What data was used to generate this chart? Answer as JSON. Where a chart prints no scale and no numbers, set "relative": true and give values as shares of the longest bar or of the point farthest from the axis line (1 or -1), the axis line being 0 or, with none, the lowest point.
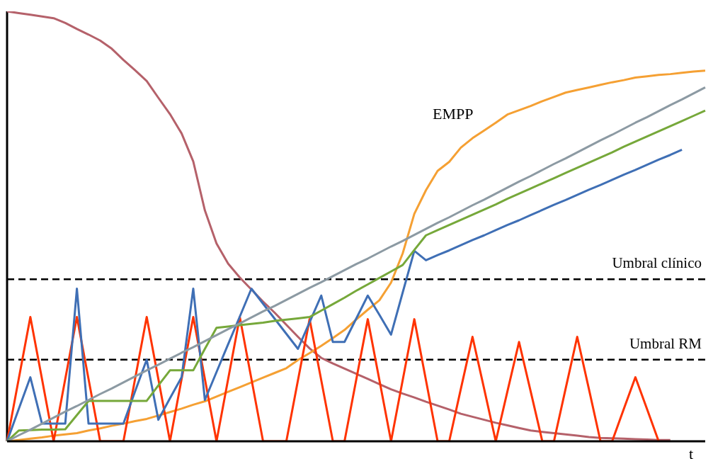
{
  "chart_data": {
    "type": "line",
    "relative": true,
    "xlabel": "t",
    "annotations": [
      "EMPP"
    ],
    "categories": [
      null,
      null,
      null,
      null,
      null,
      null,
      null,
      null,
      null,
      null,
      null,
      null,
      null,
      null,
      null,
      null,
      null,
      null,
      null,
      null,
      null,
      null,
      null,
      null,
      null,
      null,
      null,
      null,
      null,
      null,
      null,
      null,
      null,
      null,
      null,
      null,
      null,
      null,
      null,
      null,
      null,
      null,
      null,
      null,
      null,
      null,
      null,
      null,
      null,
      null,
      null,
      null,
      null,
      null,
      null,
      null,
      null,
      null,
      null,
      null,
      null
    ],
    "ref_lines": [
      {
        "axis": "y",
        "value": 0.377,
        "label": "Umbral clínico",
        "color": "#000000",
        "line_style": "dashed"
      },
      {
        "axis": "y",
        "value": 0.19,
        "label": "Umbral RM",
        "color": "#000000",
        "line_style": "dashed"
      }
    ],
    "series": [
      {
        "color": "#b5616a",
        "values": [
          1,
          0.996,
          0.992,
          0.988,
          0.984,
          0.973,
          0.959,
          0.946,
          0.932,
          0.913,
          0.887,
          0.863,
          0.838,
          0.799,
          0.761,
          0.716,
          0.651,
          0.537,
          0.46,
          0.413,
          0.381,
          0.353,
          0.325,
          0.299,
          0.271,
          0.243,
          0.216,
          0.194,
          0.181,
          0.169,
          0.157,
          0.145,
          0.133,
          0.121,
          0.111,
          0.102,
          0.092,
          0.083,
          0.074,
          0.064,
          0.057,
          0.05,
          0.043,
          0.037,
          0.031,
          0.025,
          0.022,
          0.019,
          0.016,
          0.013,
          0.01,
          0.008,
          0.007,
          0.006,
          0.005,
          0.004,
          0.003,
          0.003,
          null,
          null,
          null
        ]
      },
      {
        "color": "#f5a033",
        "values": [
          0,
          0.003,
          0.006,
          0.009,
          0.013,
          0.016,
          0.019,
          0.025,
          0.03,
          0.036,
          0.041,
          0.047,
          0.052,
          0.06,
          0.068,
          0.076,
          0.085,
          0.093,
          0.104,
          0.115,
          0.126,
          0.137,
          0.148,
          0.159,
          0.17,
          0.189,
          0.205,
          0.222,
          0.24,
          0.259,
          0.283,
          0.306,
          0.328,
          0.369,
          0.437,
          0.529,
          0.584,
          0.629,
          0.65,
          0.683,
          0.705,
          0.723,
          0.741,
          0.76,
          0.77,
          0.78,
          0.791,
          0.801,
          0.811,
          0.817,
          0.823,
          0.829,
          0.835,
          0.84,
          0.846,
          0.849,
          0.852,
          0.854,
          0.857,
          0.86,
          0.862
        ]
      },
      {
        "color": "#ff3300",
        "values": [
          0,
          0.145,
          0.289,
          0.145,
          0,
          0.145,
          0.289,
          0.145,
          0,
          0,
          0,
          0.145,
          0.289,
          0.145,
          0,
          0.145,
          0.289,
          0.145,
          0,
          0.145,
          0.289,
          0.145,
          0,
          0,
          0,
          0.142,
          0.284,
          0.142,
          0,
          0,
          0.142,
          0.284,
          0.142,
          0,
          0.142,
          0.284,
          0.142,
          0,
          0,
          0.122,
          0.243,
          0.122,
          0,
          0.116,
          0.231,
          0.116,
          0,
          0,
          0.122,
          0.243,
          0.122,
          0,
          0,
          0.075,
          0.149,
          0.075,
          0,
          null,
          null,
          null,
          null
        ]
      },
      {
        "color": "#3f6fb5",
        "values": [
          0,
          0.075,
          0.149,
          0.041,
          0.041,
          0.041,
          0.355,
          0.041,
          0.041,
          0.041,
          0.041,
          0.116,
          0.19,
          0.05,
          0.1,
          0.149,
          0.355,
          0.096,
          0.161,
          0.226,
          0.29,
          0.355,
          0.32,
          0.285,
          0.25,
          0.215,
          0.277,
          0.339,
          0.231,
          0.231,
          0.285,
          0.339,
          0.294,
          0.248,
          0.346,
          0.443,
          0.421,
          0.433,
          0.444,
          0.456,
          0.468,
          0.479,
          0.491,
          0.503,
          0.514,
          0.526,
          0.538,
          0.55,
          0.561,
          0.573,
          0.585,
          0.596,
          0.608,
          0.62,
          0.631,
          0.643,
          0.655,
          0.666,
          0.678,
          null,
          null
        ]
      },
      {
        "color": "#76a83a",
        "values": [
          0,
          0.025,
          0.026,
          0.027,
          0.027,
          0.028,
          0.061,
          0.094,
          0.094,
          0.094,
          0.094,
          0.094,
          0.094,
          0.13,
          0.165,
          0.165,
          0.165,
          0.215,
          0.264,
          0.267,
          0.27,
          0.273,
          0.276,
          0.28,
          0.283,
          0.286,
          0.289,
          0.304,
          0.319,
          0.334,
          0.35,
          0.365,
          0.38,
          0.395,
          0.41,
          0.445,
          0.479,
          0.491,
          0.503,
          0.515,
          0.527,
          0.539,
          0.551,
          0.564,
          0.576,
          0.588,
          0.6,
          0.612,
          0.624,
          0.636,
          0.648,
          0.66,
          0.672,
          0.685,
          0.697,
          0.709,
          0.721,
          0.733,
          0.745,
          0.757,
          0.769
        ]
      },
      {
        "color": "#8c9aa3",
        "values": [
          0,
          0.014,
          0.027,
          0.041,
          0.055,
          0.069,
          0.082,
          0.096,
          0.11,
          0.123,
          0.137,
          0.151,
          0.165,
          0.178,
          0.192,
          0.206,
          0.219,
          0.233,
          0.247,
          0.261,
          0.274,
          0.288,
          0.302,
          0.315,
          0.329,
          0.343,
          0.357,
          0.37,
          0.384,
          0.398,
          0.412,
          0.425,
          0.439,
          0.453,
          0.466,
          0.48,
          0.494,
          0.508,
          0.521,
          0.535,
          0.549,
          0.562,
          0.576,
          0.59,
          0.604,
          0.617,
          0.631,
          0.645,
          0.658,
          0.672,
          0.686,
          0.7,
          0.713,
          0.727,
          0.741,
          0.754,
          0.768,
          0.782,
          0.795,
          0.809,
          0.823
        ]
      }
    ]
  }
}
